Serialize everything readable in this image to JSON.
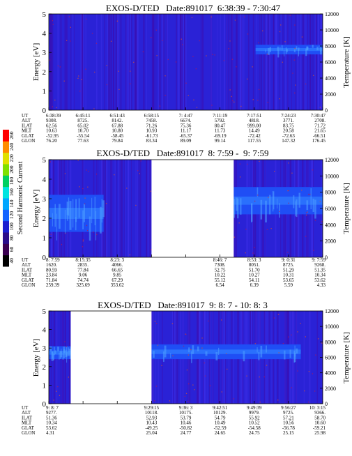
{
  "colorbar": {
    "label": "Second Harmonic Current",
    "ticks": [
      "40",
      "60",
      "80",
      "100",
      "120",
      "140",
      "160",
      "180",
      "200",
      "220",
      "240",
      "260"
    ],
    "colors": [
      "#000000",
      "#3a0050",
      "#2a0d8a",
      "#1a1fd0",
      "#1463ff",
      "#00a6ff",
      "#00e4e0",
      "#00d060",
      "#7fe000",
      "#e0e000",
      "#ff8c00",
      "#ff0000"
    ]
  },
  "chart_data": [
    {
      "type": "heatmap",
      "title": "EXOS-D/TED   Date:891017  6:38:39 - 7:30:47",
      "ylabel": "Energy [eV]",
      "ylabel_right": "Temperature [K]",
      "ylim": [
        0,
        5
      ],
      "ylim_right": [
        0,
        12000
      ],
      "yticks": [
        "0",
        "1",
        "2",
        "3",
        "4",
        "5"
      ],
      "yticks_right": [
        "0",
        "2000",
        "4000",
        "6000",
        "8000",
        "10000",
        "12000"
      ],
      "data_gaps": [],
      "band": {
        "segments": [
          {
            "from": 0.755,
            "to": 1.0,
            "lo": 2.9,
            "hi": 3.4
          }
        ]
      },
      "param_labels": [
        "UT",
        "ALT",
        "ILAT",
        "MLT",
        "GLAT",
        "GLON"
      ],
      "columns": [
        {
          "UT": "6:38:39",
          "ALT": "9308.",
          "ILAT": "62.56",
          "MLT": "10.63",
          "GLAT": "-52.95",
          "GLON": "76.20"
        },
        {
          "UT": "6:45:11",
          "ALT": "8725.",
          "ILAT": "65.02",
          "MLT": "10.70",
          "GLAT": "-55.54",
          "GLON": "77.63"
        },
        {
          "UT": "6:51:43",
          "ALT": "8142.",
          "ILAT": "67.88",
          "MLT": "10.80",
          "GLAT": "-58.45",
          "GLON": "79.84"
        },
        {
          "UT": "6:58:15",
          "ALT": "7458.",
          "ILAT": "71.26",
          "MLT": "10.93",
          "GLAT": "-61.73",
          "GLON": "83.34"
        },
        {
          "UT": "7: 4:47",
          "ALT": "6674.",
          "ILAT": "75.36",
          "MLT": "11.17",
          "GLAT": "-65.37",
          "GLON": "89.09"
        },
        {
          "UT": "7:11:19",
          "ALT": "5792.",
          "ILAT": "80.47",
          "MLT": "11.73",
          "GLAT": "-69.19",
          "GLON": "99.14"
        },
        {
          "UT": "7:17:51",
          "ALT": "4818.",
          "ILAT": "999.00",
          "MLT": "14.49",
          "GLAT": "-72.42",
          "GLON": "117.55"
        },
        {
          "UT": "7:24:23",
          "ALT": "3771.",
          "ILAT": "83.75",
          "MLT": "20.58",
          "GLAT": "-72.63",
          "GLON": "147.32"
        },
        {
          "UT": "7:30:47",
          "ALT": "2708.",
          "ILAT": "71.72",
          "MLT": "21.65",
          "GLAT": "-66.51",
          "GLON": "176.45"
        }
      ]
    },
    {
      "type": "heatmap",
      "title": "EXOS-D/TED   Date:891017  8: 7:59 -  9: 7:59",
      "ylabel": "Energy [eV]",
      "ylabel_right": "Temperature [K]",
      "ylim": [
        0,
        5
      ],
      "ylim_right": [
        0,
        12000
      ],
      "yticks": [
        "0",
        "1",
        "2",
        "3",
        "4",
        "5"
      ],
      "yticks_right": [
        "0",
        "2000",
        "4000",
        "6000",
        "8000",
        "10000",
        "12000"
      ],
      "data_gaps": [
        [
          0.375,
          0.675
        ]
      ],
      "band": {
        "segments": [
          {
            "from": 0.0,
            "to": 0.2,
            "lo": 1.3,
            "hi": 3.2
          },
          {
            "from": 0.675,
            "to": 1.0,
            "lo": 2.2,
            "hi": 3.6
          }
        ]
      },
      "param_labels": [
        "UT",
        "ALT",
        "ILAT",
        "MLT",
        "GLAT",
        "GLON"
      ],
      "columns": [
        {
          "UT": "8: 7:59",
          "ALT": "1620.",
          "ILAT": "80.59",
          "MLT": "23.84",
          "GLAT": "71.84",
          "GLON": "259.39"
        },
        {
          "UT": "8:15:35",
          "ALT": "2835.",
          "ILAT": "77.84",
          "MLT": "9.06",
          "GLAT": "74.74",
          "GLON": "325.69"
        },
        {
          "UT": "8:23: 3",
          "ALT": "4066.",
          "ILAT": "66.65",
          "MLT": "9.85",
          "GLAT": "67.29",
          "GLON": "353.62"
        },
        null,
        null,
        {
          "UT": "8:46: 7",
          "ALT": "7308.",
          "ILAT": "52.75",
          "MLT": "10.22",
          "GLAT": "55.12",
          "GLON": "6.54"
        },
        {
          "UT": "8:53: 3",
          "ALT": "8051.",
          "ILAT": "51.70",
          "MLT": "10.27",
          "GLAT": "54.11",
          "GLON": "6.39"
        },
        {
          "UT": "9: 0:31",
          "ALT": "8725.",
          "ILAT": "51.29",
          "MLT": "10.31",
          "GLAT": "53.65",
          "GLON": "5.59"
        },
        {
          "UT": "9: 7:59",
          "ALT": "9268.",
          "ILAT": "51.35",
          "MLT": "10.34",
          "GLAT": "53.62",
          "GLON": "4.33"
        }
      ]
    },
    {
      "type": "heatmap",
      "title": "EXOS-D/TED   Date:891017  9: 8: 7 - 10: 8: 3",
      "ylabel": "Energy [eV]",
      "ylabel_right": "Temperature [K]",
      "ylim": [
        0,
        5
      ],
      "ylim_right": [
        0,
        12000
      ],
      "yticks": [
        "0",
        "1",
        "2",
        "3",
        "4",
        "5"
      ],
      "yticks_right": [
        "0",
        "2000",
        "4000",
        "6000",
        "8000",
        "10000",
        "12000"
      ],
      "data_gaps": [
        [
          0.08,
          0.375
        ]
      ],
      "band": {
        "segments": [
          {
            "from": 0.0,
            "to": 0.08,
            "lo": 2.4,
            "hi": 3.1
          },
          {
            "from": 0.375,
            "to": 0.92,
            "lo": 2.4,
            "hi": 3.2
          }
        ]
      },
      "param_labels": [
        "UT",
        "ALT",
        "ILAT",
        "MLT",
        "GLAT",
        "GLON"
      ],
      "columns": [
        {
          "UT": "9: 8: 7",
          "ALT": "9277.",
          "ILAT": "51.36",
          "MLT": "10.34",
          "GLAT": "53.62",
          "GLON": "4.31"
        },
        null,
        null,
        {
          "UT": "9:29:15",
          "ALT": "10118.",
          "ILAT": "52.93",
          "MLT": "10.43",
          "GLAT": "-49.25",
          "GLON": "25.04"
        },
        {
          "UT": "9:36: 3",
          "ALT": "10175.",
          "ILAT": "53.79",
          "MLT": "10.46",
          "GLAT": "-50.82",
          "GLON": "24.77"
        },
        {
          "UT": "9:42:51",
          "ALT": "10129.",
          "ILAT": "54.79",
          "MLT": "10.49",
          "GLAT": "-52.59",
          "GLON": "24.65"
        },
        {
          "UT": "9:49:39",
          "ALT": "9979.",
          "ILAT": "55.92",
          "MLT": "10.52",
          "GLAT": "-54.58",
          "GLON": "24.75"
        },
        {
          "UT": "9:56:27",
          "ALT": "9725.",
          "ILAT": "57.21",
          "MLT": "10.56",
          "GLAT": "-56.78",
          "GLON": "25.15"
        },
        {
          "UT": "10: 3:15",
          "ALT": "9366.",
          "ILAT": "58.70",
          "MLT": "10.60",
          "GLAT": "-59.21",
          "GLON": "25.98"
        }
      ]
    }
  ]
}
